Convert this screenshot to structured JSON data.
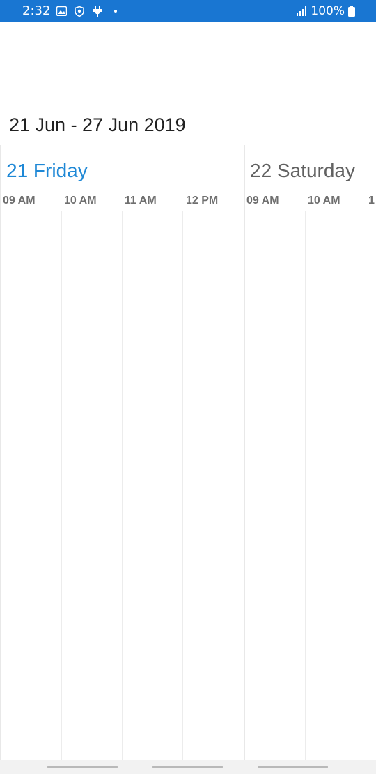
{
  "status_bar": {
    "time": "2:32",
    "battery_text": "100%",
    "icons": [
      "gallery-icon",
      "shield-icon",
      "plug-icon",
      "dot-icon",
      "signal-icon",
      "battery-icon"
    ],
    "background_color": "#1976d2"
  },
  "header": {
    "title": "21 Jun - 27 Jun 2019"
  },
  "schedule": {
    "days": [
      {
        "label": "21 Friday",
        "color": "#1e88d6",
        "hours": [
          "09 AM",
          "10 AM",
          "11 AM",
          "12 PM"
        ]
      },
      {
        "label": "22 Saturday",
        "color": "#616161",
        "hours": [
          "09 AM",
          "10 AM",
          "1"
        ]
      }
    ]
  }
}
